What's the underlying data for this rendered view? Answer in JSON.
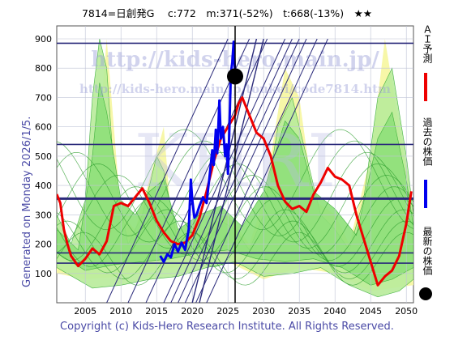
{
  "header": {
    "title": "7814=日創発G　 c:772　m:371(-52%)　t:668(-13%)　★★"
  },
  "footer": {
    "copyright": "Copyright (c) Kids-Hero Research Institute. All Rights Reserved."
  },
  "side": {
    "generated": "Generated on Monday 2026/1/5."
  },
  "watermark": {
    "url_main": "http://kids-hero.main.jp/",
    "url_sub": "http://kids-hero.main.jp/toukei/code7814.htm",
    "logo": "KHRI"
  },
  "legend": {
    "ai": "ＡＩ予測",
    "past": "過去の株価",
    "latest": "最新の株価"
  },
  "colors": {
    "ai_line": "#ee0000",
    "past_line": "#0000ee",
    "band_green": "#8fe07a",
    "band_yellow": "#f7f7a8",
    "grid": "#bfc3d6",
    "hline": "#2a2a7a"
  },
  "chart_data": {
    "type": "line",
    "xlim": [
      2001,
      2051
    ],
    "ylim": [
      0,
      900
    ],
    "x_ticks": [
      2005,
      2010,
      2015,
      2020,
      2025,
      2030,
      2035,
      2040,
      2045,
      2050
    ],
    "y_ticks": [
      100,
      200,
      300,
      400,
      500,
      600,
      700,
      800,
      900
    ],
    "grid": true,
    "horizontal_lines": [
      885,
      540,
      355,
      170,
      135
    ],
    "vertical_line_x": 2026.0,
    "latest_point": {
      "x": 2026.0,
      "y": 772
    },
    "series": [
      {
        "name": "ＡＩ予測",
        "color": "#ee0000",
        "points": [
          [
            2001,
            370
          ],
          [
            2001.5,
            340
          ],
          [
            2002,
            250
          ],
          [
            2002.5,
            200
          ],
          [
            2003,
            160
          ],
          [
            2004,
            125
          ],
          [
            2005,
            150
          ],
          [
            2006,
            185
          ],
          [
            2007,
            165
          ],
          [
            2008,
            210
          ],
          [
            2009,
            330
          ],
          [
            2010,
            340
          ],
          [
            2011,
            330
          ],
          [
            2012,
            360
          ],
          [
            2013,
            390
          ],
          [
            2014,
            340
          ],
          [
            2015,
            280
          ],
          [
            2016,
            240
          ],
          [
            2017,
            210
          ],
          [
            2018,
            200
          ],
          [
            2019,
            205
          ],
          [
            2020,
            230
          ],
          [
            2021,
            290
          ],
          [
            2022,
            380
          ],
          [
            2023,
            480
          ],
          [
            2024,
            560
          ],
          [
            2025,
            600
          ],
          [
            2026,
            640
          ],
          [
            2026.5,
            680
          ],
          [
            2027,
            700
          ],
          [
            2028,
            640
          ],
          [
            2029,
            580
          ],
          [
            2030,
            560
          ],
          [
            2031,
            500
          ],
          [
            2032,
            400
          ],
          [
            2033,
            345
          ],
          [
            2034,
            320
          ],
          [
            2035,
            330
          ],
          [
            2036,
            310
          ],
          [
            2037,
            370
          ],
          [
            2038,
            410
          ],
          [
            2039,
            460
          ],
          [
            2040,
            430
          ],
          [
            2041,
            420
          ],
          [
            2042,
            400
          ],
          [
            2043,
            300
          ],
          [
            2044,
            220
          ],
          [
            2045,
            140
          ],
          [
            2045.5,
            100
          ],
          [
            2046,
            60
          ],
          [
            2047,
            90
          ],
          [
            2048,
            110
          ],
          [
            2049,
            160
          ],
          [
            2050,
            270
          ],
          [
            2050.7,
            380
          ]
        ]
      },
      {
        "name": "過去の株価",
        "color": "#0000ee",
        "points": [
          [
            2015.5,
            160
          ],
          [
            2016,
            140
          ],
          [
            2016.5,
            165
          ],
          [
            2017,
            155
          ],
          [
            2017.5,
            200
          ],
          [
            2018,
            175
          ],
          [
            2018.5,
            205
          ],
          [
            2019,
            180
          ],
          [
            2019.5,
            250
          ],
          [
            2019.8,
            420
          ],
          [
            2020,
            350
          ],
          [
            2020.3,
            290
          ],
          [
            2020.6,
            300
          ],
          [
            2021,
            330
          ],
          [
            2021.5,
            360
          ],
          [
            2022,
            340
          ],
          [
            2022.5,
            450
          ],
          [
            2022.8,
            520
          ],
          [
            2023,
            470
          ],
          [
            2023.3,
            590
          ],
          [
            2023.5,
            510
          ],
          [
            2023.8,
            690
          ],
          [
            2024,
            560
          ],
          [
            2024.3,
            600
          ],
          [
            2024.6,
            500
          ],
          [
            2024.8,
            540
          ],
          [
            2025,
            440
          ],
          [
            2025.2,
            600
          ],
          [
            2025.4,
            780
          ],
          [
            2025.6,
            820
          ],
          [
            2025.8,
            890
          ],
          [
            2026,
            772
          ]
        ]
      }
    ]
  }
}
